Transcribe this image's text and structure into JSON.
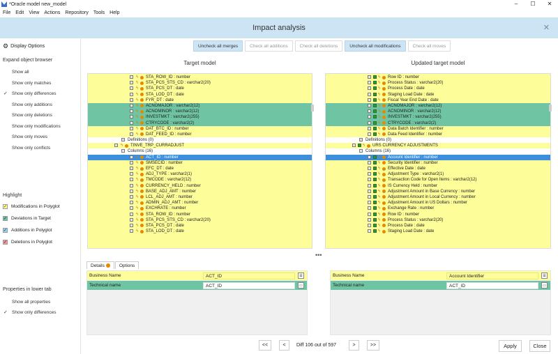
{
  "window": {
    "title": "*Oracle model new_model",
    "minimize": "–",
    "maximize": "☐",
    "close": "✕"
  },
  "menu": [
    "File",
    "Edit",
    "View",
    "Actions",
    "Repository",
    "Tools",
    "Help"
  ],
  "dialog": {
    "title": "Impact analysis",
    "close": "✕"
  },
  "left": {
    "display_options": "Display Options",
    "expand_header": "Expand object browser",
    "expand_items": [
      "Show all",
      "Show only matches",
      "Show only differences",
      "Show only additions",
      "Show only deletions",
      "Show only modifications",
      "Show only moves",
      "Show only conflicts"
    ],
    "expand_checked": "Show only differences",
    "highlight_header": "Highlight",
    "highlight_items": [
      {
        "label": "Modifications in Polyglot",
        "color": "#fdfd9a",
        "checkcolor": "#8a6d00"
      },
      {
        "label": "Deviations in Target",
        "color": "#6fc4a3",
        "checkcolor": "#1c5a3d"
      },
      {
        "label": "Additions in Polyglot",
        "color": "#9fd0f0",
        "checkcolor": "#1f5a85"
      },
      {
        "label": "Deletions in Polyglot",
        "color": "#f29a9a",
        "checkcolor": "#8a1f1f"
      }
    ],
    "properties_header": "Properties in lower tab",
    "properties_items": [
      "Show all properties",
      "Show only differences"
    ],
    "properties_checked": "Show only differences",
    "check": "✓"
  },
  "toolbar": [
    {
      "label": "Uncheck all merges",
      "active": true
    },
    {
      "label": "Check all additions",
      "active": false
    },
    {
      "label": "Check all deletions",
      "active": false
    },
    {
      "label": "Uncheck all modifications",
      "active": true
    },
    {
      "label": "Check all moves",
      "active": false
    }
  ],
  "target_title": "Target model",
  "updated_title": "Updated target model",
  "target_rows": [
    {
      "t": "STA_ROW_ID : number",
      "c": "y",
      "d": 1
    },
    {
      "t": "STA_PCS_STS_CD : varchar2(20)",
      "c": "y",
      "d": 1
    },
    {
      "t": "STA_PCS_DT : date",
      "c": "y",
      "d": 1
    },
    {
      "t": "STA_LOD_DT : date",
      "c": "y",
      "d": 1
    },
    {
      "t": "FYR_DT : date",
      "c": "y",
      "d": 1
    },
    {
      "t": "ACNOMAJOR : varchar2(12)",
      "c": "g",
      "d": 1
    },
    {
      "t": "ACNOMINOR : varchar2(12)",
      "c": "g",
      "d": 1
    },
    {
      "t": "INVESTMKT : varchar2(255)",
      "c": "g",
      "d": 1
    },
    {
      "t": "CTRYCODE : varchar2(2)",
      "c": "g",
      "d": 1
    },
    {
      "t": "DAT_BTC_ID : number",
      "c": "y",
      "d": 1
    },
    {
      "t": "DAT_FEED_ID : number",
      "c": "y",
      "d": 1
    },
    {
      "t": "Definitions (0)",
      "c": "w",
      "d": 2
    },
    {
      "t": "TINVE_TRP_CURRADJUST",
      "c": "y",
      "d": 3
    },
    {
      "t": "Columns (16)",
      "c": "w",
      "d": 2
    },
    {
      "t": "ACT_ID : number",
      "c": "s",
      "d": 1
    },
    {
      "t": "SMSECID : number",
      "c": "y",
      "d": 1
    },
    {
      "t": "EFC_DT : date",
      "c": "y",
      "d": 1
    },
    {
      "t": "ADJ_TYPE : varchar2(1)",
      "c": "y",
      "d": 1
    },
    {
      "t": "TMCODE : varchar2(12)",
      "c": "y",
      "d": 1
    },
    {
      "t": "CURRENCY_HELD : number",
      "c": "y",
      "d": 1
    },
    {
      "t": "BASE_ADJ_AMT : number",
      "c": "y",
      "d": 1
    },
    {
      "t": "LCL_ADJ_AMT : number",
      "c": "y",
      "d": 1
    },
    {
      "t": "ADMIN_ADJ_AMT : number",
      "c": "y",
      "d": 1
    },
    {
      "t": "EXCHRATE : number",
      "c": "y",
      "d": 1
    },
    {
      "t": "STA_ROW_ID : number",
      "c": "y",
      "d": 1
    },
    {
      "t": "STA_PCS_STS_CD : varchar2(20)",
      "c": "y",
      "d": 1
    },
    {
      "t": "STA_PCS_DT : date",
      "c": "y",
      "d": 1
    },
    {
      "t": "STA_LOD_DT : date",
      "c": "y",
      "d": 1
    }
  ],
  "updated_rows": [
    {
      "t": "Row ID : number",
      "c": "y",
      "d": 1
    },
    {
      "t": "Process Status : varchar2(20)",
      "c": "y",
      "d": 1
    },
    {
      "t": "Process Date : date",
      "c": "y",
      "d": 1
    },
    {
      "t": "Staging Load Date : date",
      "c": "y",
      "d": 1
    },
    {
      "t": "Fiscal Year End Date : date",
      "c": "y",
      "d": 1
    },
    {
      "t": "ACNOMAJOR : varchar2(12)",
      "c": "g",
      "d": 1
    },
    {
      "t": "ACNOMINOR : varchar2(12)",
      "c": "g",
      "d": 1
    },
    {
      "t": "INVESTMKT : varchar2(255)",
      "c": "g",
      "d": 1
    },
    {
      "t": "CTRYCODE : varchar2(2)",
      "c": "g",
      "d": 1
    },
    {
      "t": "Data Batch Identifier : number",
      "c": "y",
      "d": 1
    },
    {
      "t": "Data Feed Identifier : number",
      "c": "y",
      "d": 1
    },
    {
      "t": "Definitions (0)",
      "c": "w",
      "d": 2
    },
    {
      "t": "URS CURRENCY ADJUSTMENTS",
      "c": "y",
      "d": 3
    },
    {
      "t": "Columns (16)",
      "c": "w",
      "d": 2
    },
    {
      "t": "Account Identifier : number",
      "c": "s",
      "d": 1
    },
    {
      "t": "Security Identifier : number",
      "c": "y",
      "d": 1
    },
    {
      "t": "Effective Date : date",
      "c": "y",
      "d": 1
    },
    {
      "t": "Adjustment Type : varchar2(1)",
      "c": "y",
      "d": 1
    },
    {
      "t": "Transaction Code for Open Items : varchar2(12)",
      "c": "y",
      "d": 1
    },
    {
      "t": "IS Currency Held : number",
      "c": "y",
      "d": 1
    },
    {
      "t": "Adjustment Amount in Base Currency : number",
      "c": "y",
      "d": 1
    },
    {
      "t": "Adjustment Amount in Local Currency : number",
      "c": "y",
      "d": 1
    },
    {
      "t": "Adjustment Amount in US Dollars : number",
      "c": "y",
      "d": 1
    },
    {
      "t": "Exchange Rate : number",
      "c": "y",
      "d": 1
    },
    {
      "t": "Row ID : number",
      "c": "y",
      "d": 1
    },
    {
      "t": "Process Status : varchar2(20)",
      "c": "y",
      "d": 1
    },
    {
      "t": "Process Date : date",
      "c": "y",
      "d": 1
    },
    {
      "t": "Staging Load Date : date",
      "c": "y",
      "d": 1
    }
  ],
  "ellipsis": "•••",
  "tabs": {
    "details": "Details",
    "options": "Options"
  },
  "props_left": {
    "r1_label": "Business Name",
    "r1_value": "ACT_ID",
    "r2_label": "Technical name",
    "r2_value": "ACT_ID"
  },
  "props_right": {
    "r1_label": "Business Name",
    "r1_value": "Account Identifier",
    "r2_label": "Technical name",
    "r2_value": "ACT_ID"
  },
  "footer": {
    "first": "<<",
    "prev": "<",
    "diff": "Diff 106 out of 597",
    "next": ">",
    "last": ">>",
    "apply": "Apply",
    "close": "Close"
  }
}
